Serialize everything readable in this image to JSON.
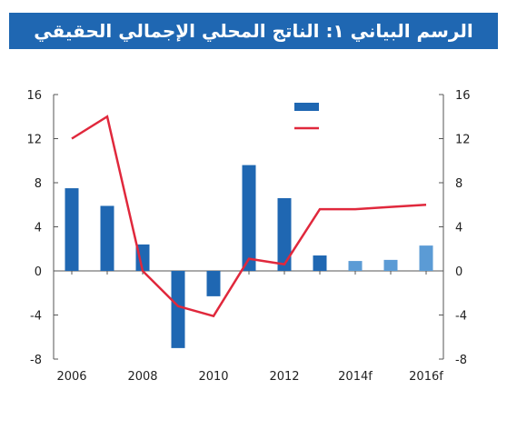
{
  "title": "الرسم البياني ١: الناتج المحلي الإجمالي الحقيقي",
  "colors": {
    "title_bg": "#1f67b2",
    "bar_actual": "#1f67b2",
    "bar_forecast": "#5b9bd5",
    "line": "#e0283c",
    "axis": "#555555"
  },
  "chart_data": {
    "type": "bar+line",
    "title": "الرسم البياني ١: الناتج المحلي الإجمالي الحقيقي",
    "x": [
      "2006",
      "2007",
      "2008",
      "2009",
      "2010",
      "2011",
      "2012",
      "2013",
      "2014f",
      "2015f",
      "2016f"
    ],
    "x_tick_labels": [
      "2006",
      "2008",
      "2010",
      "2012",
      "2014f",
      "2016f"
    ],
    "ylim_left": [
      -8,
      16
    ],
    "ylim_right": [
      -8,
      16
    ],
    "yticks": [
      -8,
      -4,
      0,
      4,
      8,
      12,
      16
    ],
    "grid": false,
    "legend": "top-center",
    "series": [
      {
        "kind": "bar",
        "axis": "left",
        "values": [
          7.5,
          5.9,
          2.4,
          -7.0,
          -2.3,
          9.6,
          6.6,
          1.4,
          0.9,
          1.0,
          2.3
        ],
        "forecast_from_index": 8
      },
      {
        "kind": "line",
        "axis": "right",
        "values": [
          12.0,
          14.0,
          0.0,
          -3.2,
          -4.1,
          1.1,
          0.6,
          5.6,
          5.6,
          5.8,
          6.0
        ]
      }
    ]
  }
}
